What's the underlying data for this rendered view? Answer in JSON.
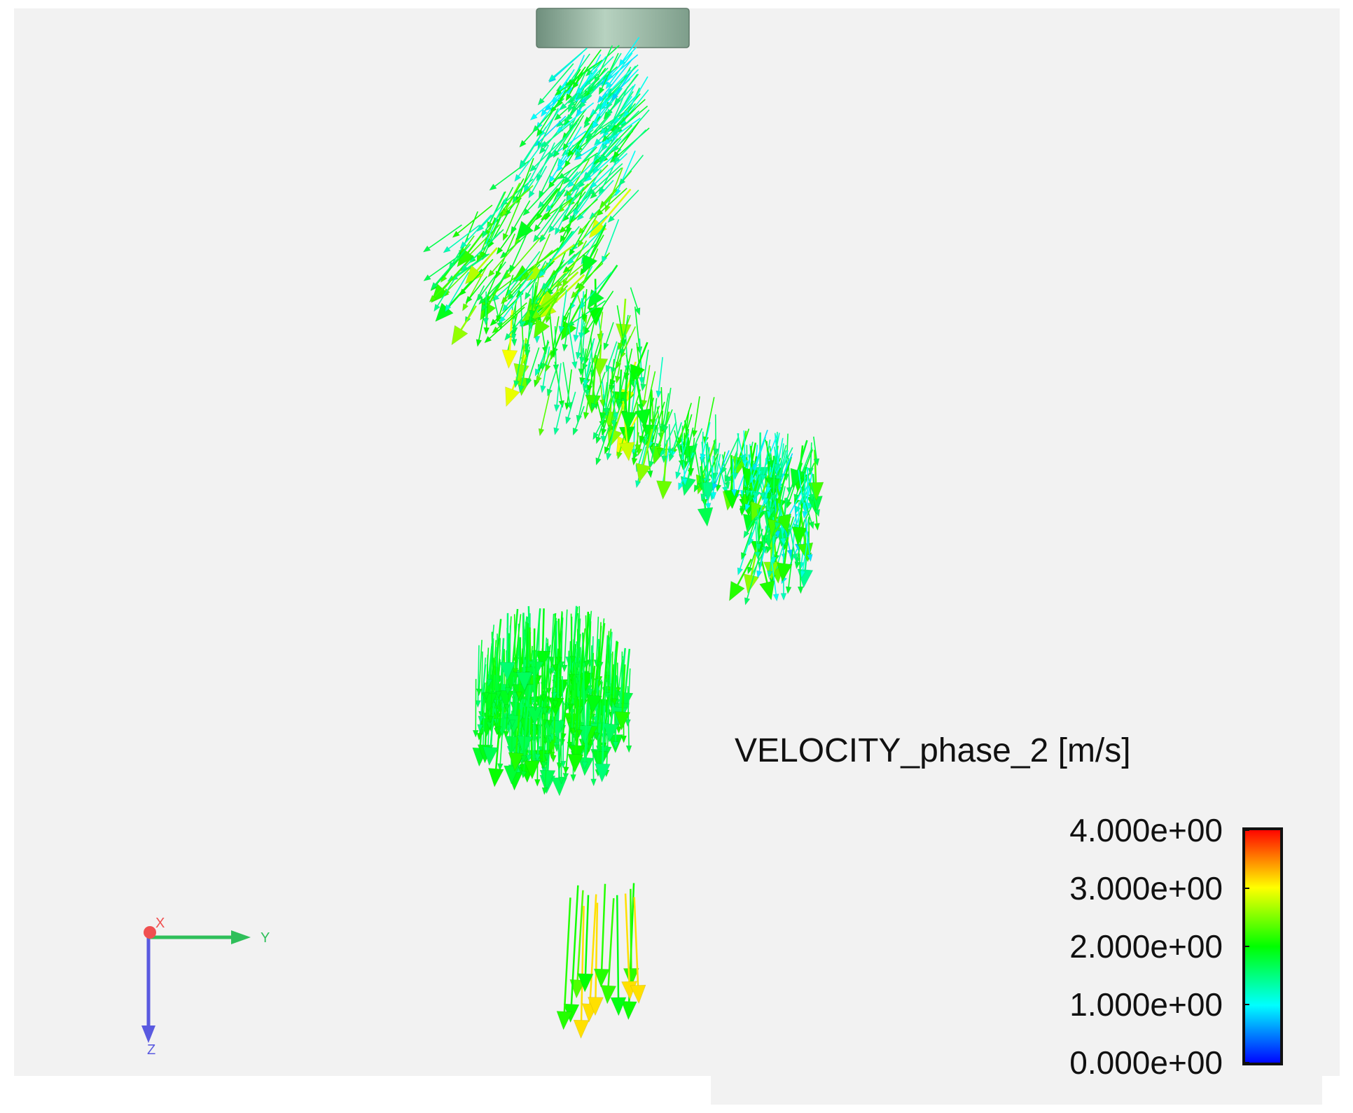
{
  "colorbar": {
    "title": "VELOCITY_phase_2 [m/s]",
    "range": [
      0,
      4
    ],
    "ticks": [
      {
        "value": 4,
        "label": "4.000e+00"
      },
      {
        "value": 3,
        "label": "3.000e+00"
      },
      {
        "value": 2,
        "label": "2.000e+00"
      },
      {
        "value": 1,
        "label": "1.000e+00"
      },
      {
        "value": 0,
        "label": "0.000e+00"
      }
    ],
    "colors": [
      "#0000ff",
      "#00ffff",
      "#00ff00",
      "#ffff00",
      "#ff0000"
    ]
  },
  "triad": {
    "x": "X",
    "y": "Y",
    "z": "Z"
  }
}
